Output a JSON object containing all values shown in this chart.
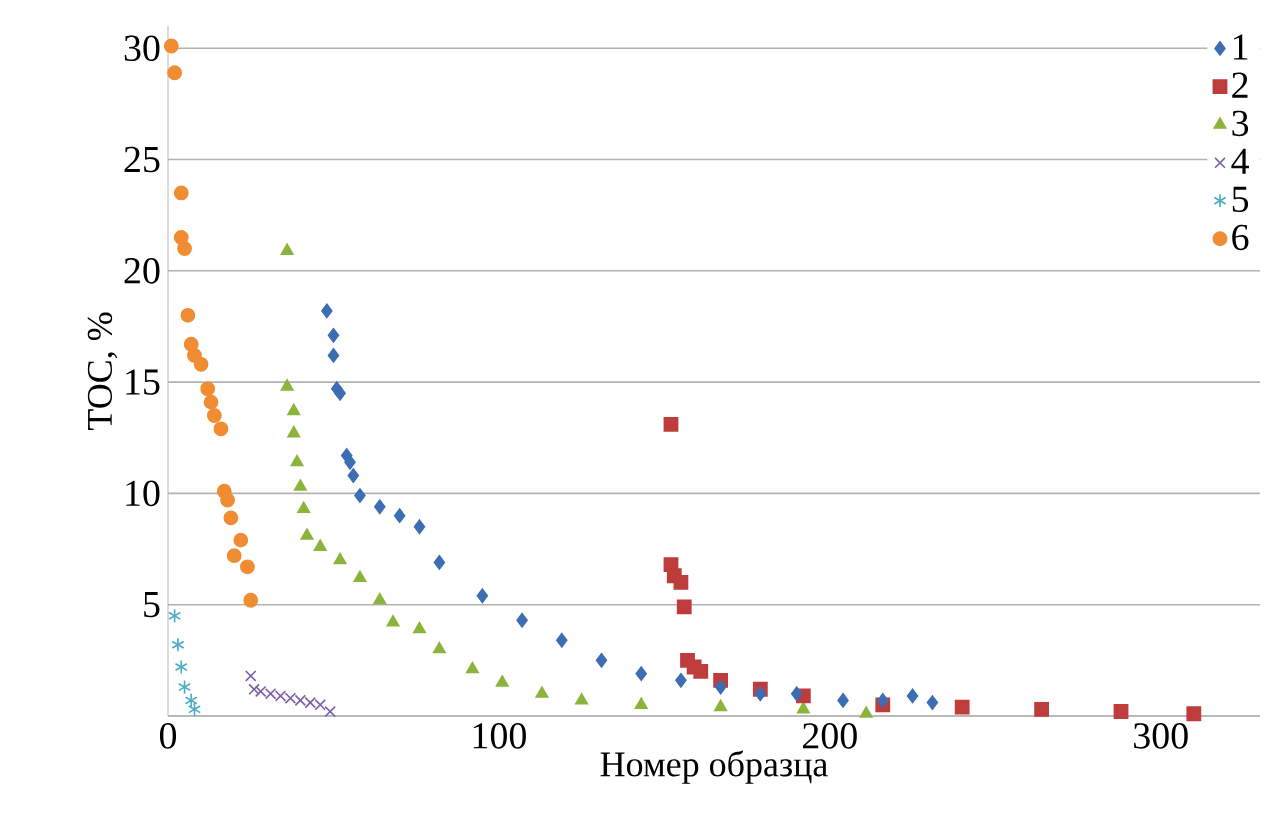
{
  "chart_data": {
    "type": "scatter",
    "xlabel": "Номер образца",
    "ylabel": "TOC, %",
    "xlim": [
      0,
      330
    ],
    "ylim": [
      0,
      31
    ],
    "xticks": [
      0,
      100,
      200,
      300
    ],
    "yticks": [
      {
        "value": 0,
        "label": null
      },
      5,
      10,
      15,
      20,
      25,
      30
    ],
    "grid": "y",
    "legend": "top right",
    "series": [
      {
        "name": "1",
        "color": "#3d6eb4",
        "marker": "diamond",
        "x": [
          48,
          50,
          50,
          51,
          52,
          54,
          55,
          56,
          58,
          64,
          70,
          76,
          82,
          95,
          107,
          119,
          131,
          143,
          155,
          167,
          179,
          190,
          204,
          216,
          225,
          231
        ],
        "values": [
          18.2,
          17.1,
          16.2,
          14.7,
          14.5,
          11.7,
          11.4,
          10.8,
          9.9,
          9.4,
          9.0,
          8.5,
          6.9,
          5.4,
          4.3,
          3.4,
          2.5,
          1.9,
          1.6,
          1.3,
          1.0,
          1.0,
          0.7,
          0.7,
          0.9,
          0.6
        ]
      },
      {
        "name": "2",
        "color": "#be3c3c",
        "marker": "square",
        "x": [
          152,
          152,
          153,
          155,
          156,
          157,
          159,
          161,
          167,
          179,
          192,
          216,
          240,
          264,
          288,
          310
        ],
        "values": [
          13.1,
          6.8,
          6.3,
          6.0,
          4.9,
          2.5,
          2.2,
          2.0,
          1.6,
          1.2,
          0.9,
          0.5,
          0.4,
          0.3,
          0.2,
          0.1
        ]
      },
      {
        "name": "3",
        "color": "#8cb43c",
        "marker": "triangle",
        "x": [
          36,
          36,
          38,
          38,
          39,
          40,
          41,
          42,
          46,
          52,
          58,
          64,
          68,
          76,
          82,
          92,
          101,
          113,
          125,
          143,
          167,
          192,
          211
        ],
        "values": [
          20.9,
          14.8,
          13.7,
          12.7,
          11.4,
          10.3,
          9.3,
          8.1,
          7.6,
          7.0,
          6.2,
          5.2,
          4.2,
          3.9,
          3.0,
          2.1,
          1.5,
          1.0,
          0.7,
          0.5,
          0.4,
          0.3,
          0.1
        ]
      },
      {
        "name": "4",
        "color": "#7b5ea7",
        "marker": "cross",
        "x": [
          25,
          26,
          28,
          31,
          34,
          37,
          40,
          43,
          46,
          49
        ],
        "values": [
          1.8,
          1.2,
          1.1,
          1.0,
          0.9,
          0.8,
          0.7,
          0.6,
          0.5,
          0.2
        ]
      },
      {
        "name": "5",
        "color": "#4aacc6",
        "x": [
          2,
          3,
          4,
          5,
          7,
          8
        ],
        "values": [
          4.5,
          3.2,
          2.2,
          1.3,
          0.7,
          0.3
        ]
      },
      {
        "name": "6",
        "color": "#f08c32",
        "marker": "circle",
        "x": [
          1,
          2,
          4,
          4,
          5,
          6,
          7,
          8,
          10,
          12,
          13,
          14,
          16,
          17,
          18,
          19,
          20,
          22,
          24,
          25
        ],
        "values": [
          30.1,
          28.9,
          23.5,
          21.5,
          21.0,
          18.0,
          16.7,
          16.2,
          15.8,
          14.7,
          14.1,
          13.5,
          12.9,
          10.1,
          9.7,
          8.9,
          7.2,
          7.9,
          6.7,
          5.2
        ]
      }
    ]
  }
}
